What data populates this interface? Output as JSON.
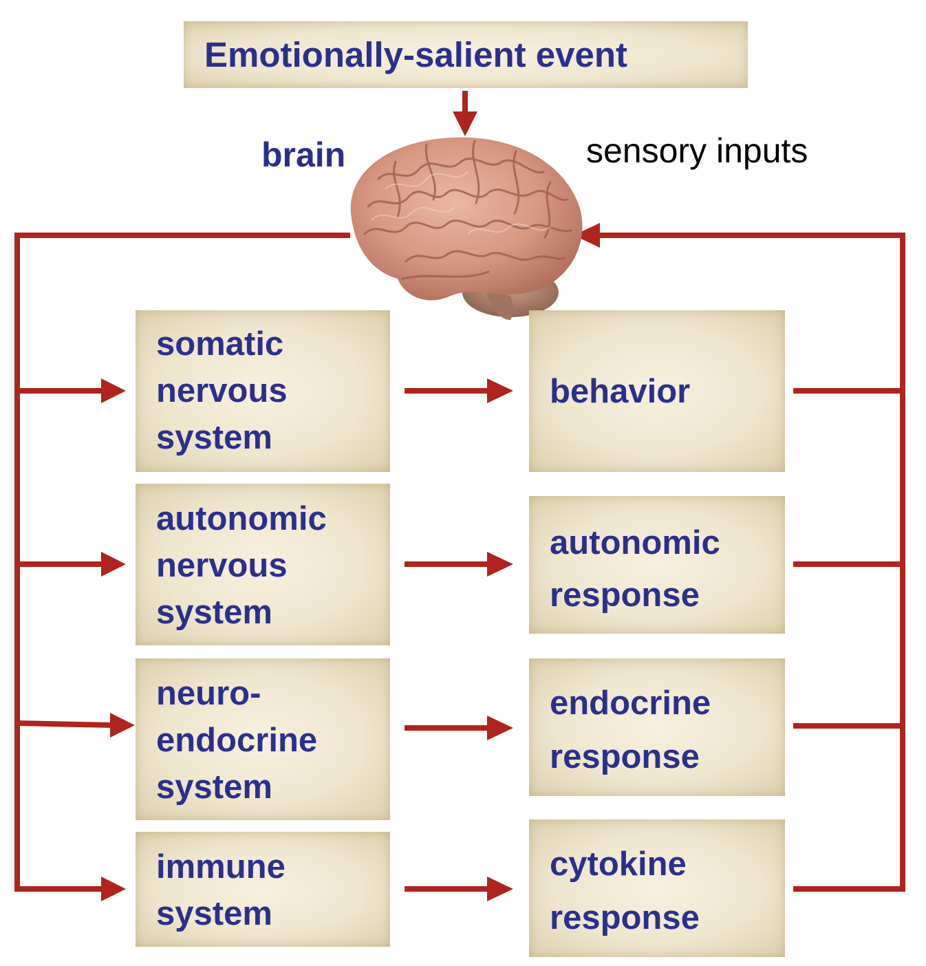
{
  "event": "Emotionally-salient event",
  "brain_label": "brain",
  "sensory_label": "sensory inputs",
  "systems": [
    "somatic\nnervous\nsystem",
    "autonomic\nnervous\nsystem",
    "neuro-\nendocrine\nsystem",
    "immune\nsystem"
  ],
  "responses": [
    "behavior",
    "autonomic\nresponse",
    "endocrine\nresponse",
    "cytokine\nresponse"
  ],
  "colors": {
    "arrow": "#b0241f",
    "text": "#2b2f8c",
    "box": "#efe6cf"
  },
  "icons": {
    "brain": "brain-icon"
  }
}
